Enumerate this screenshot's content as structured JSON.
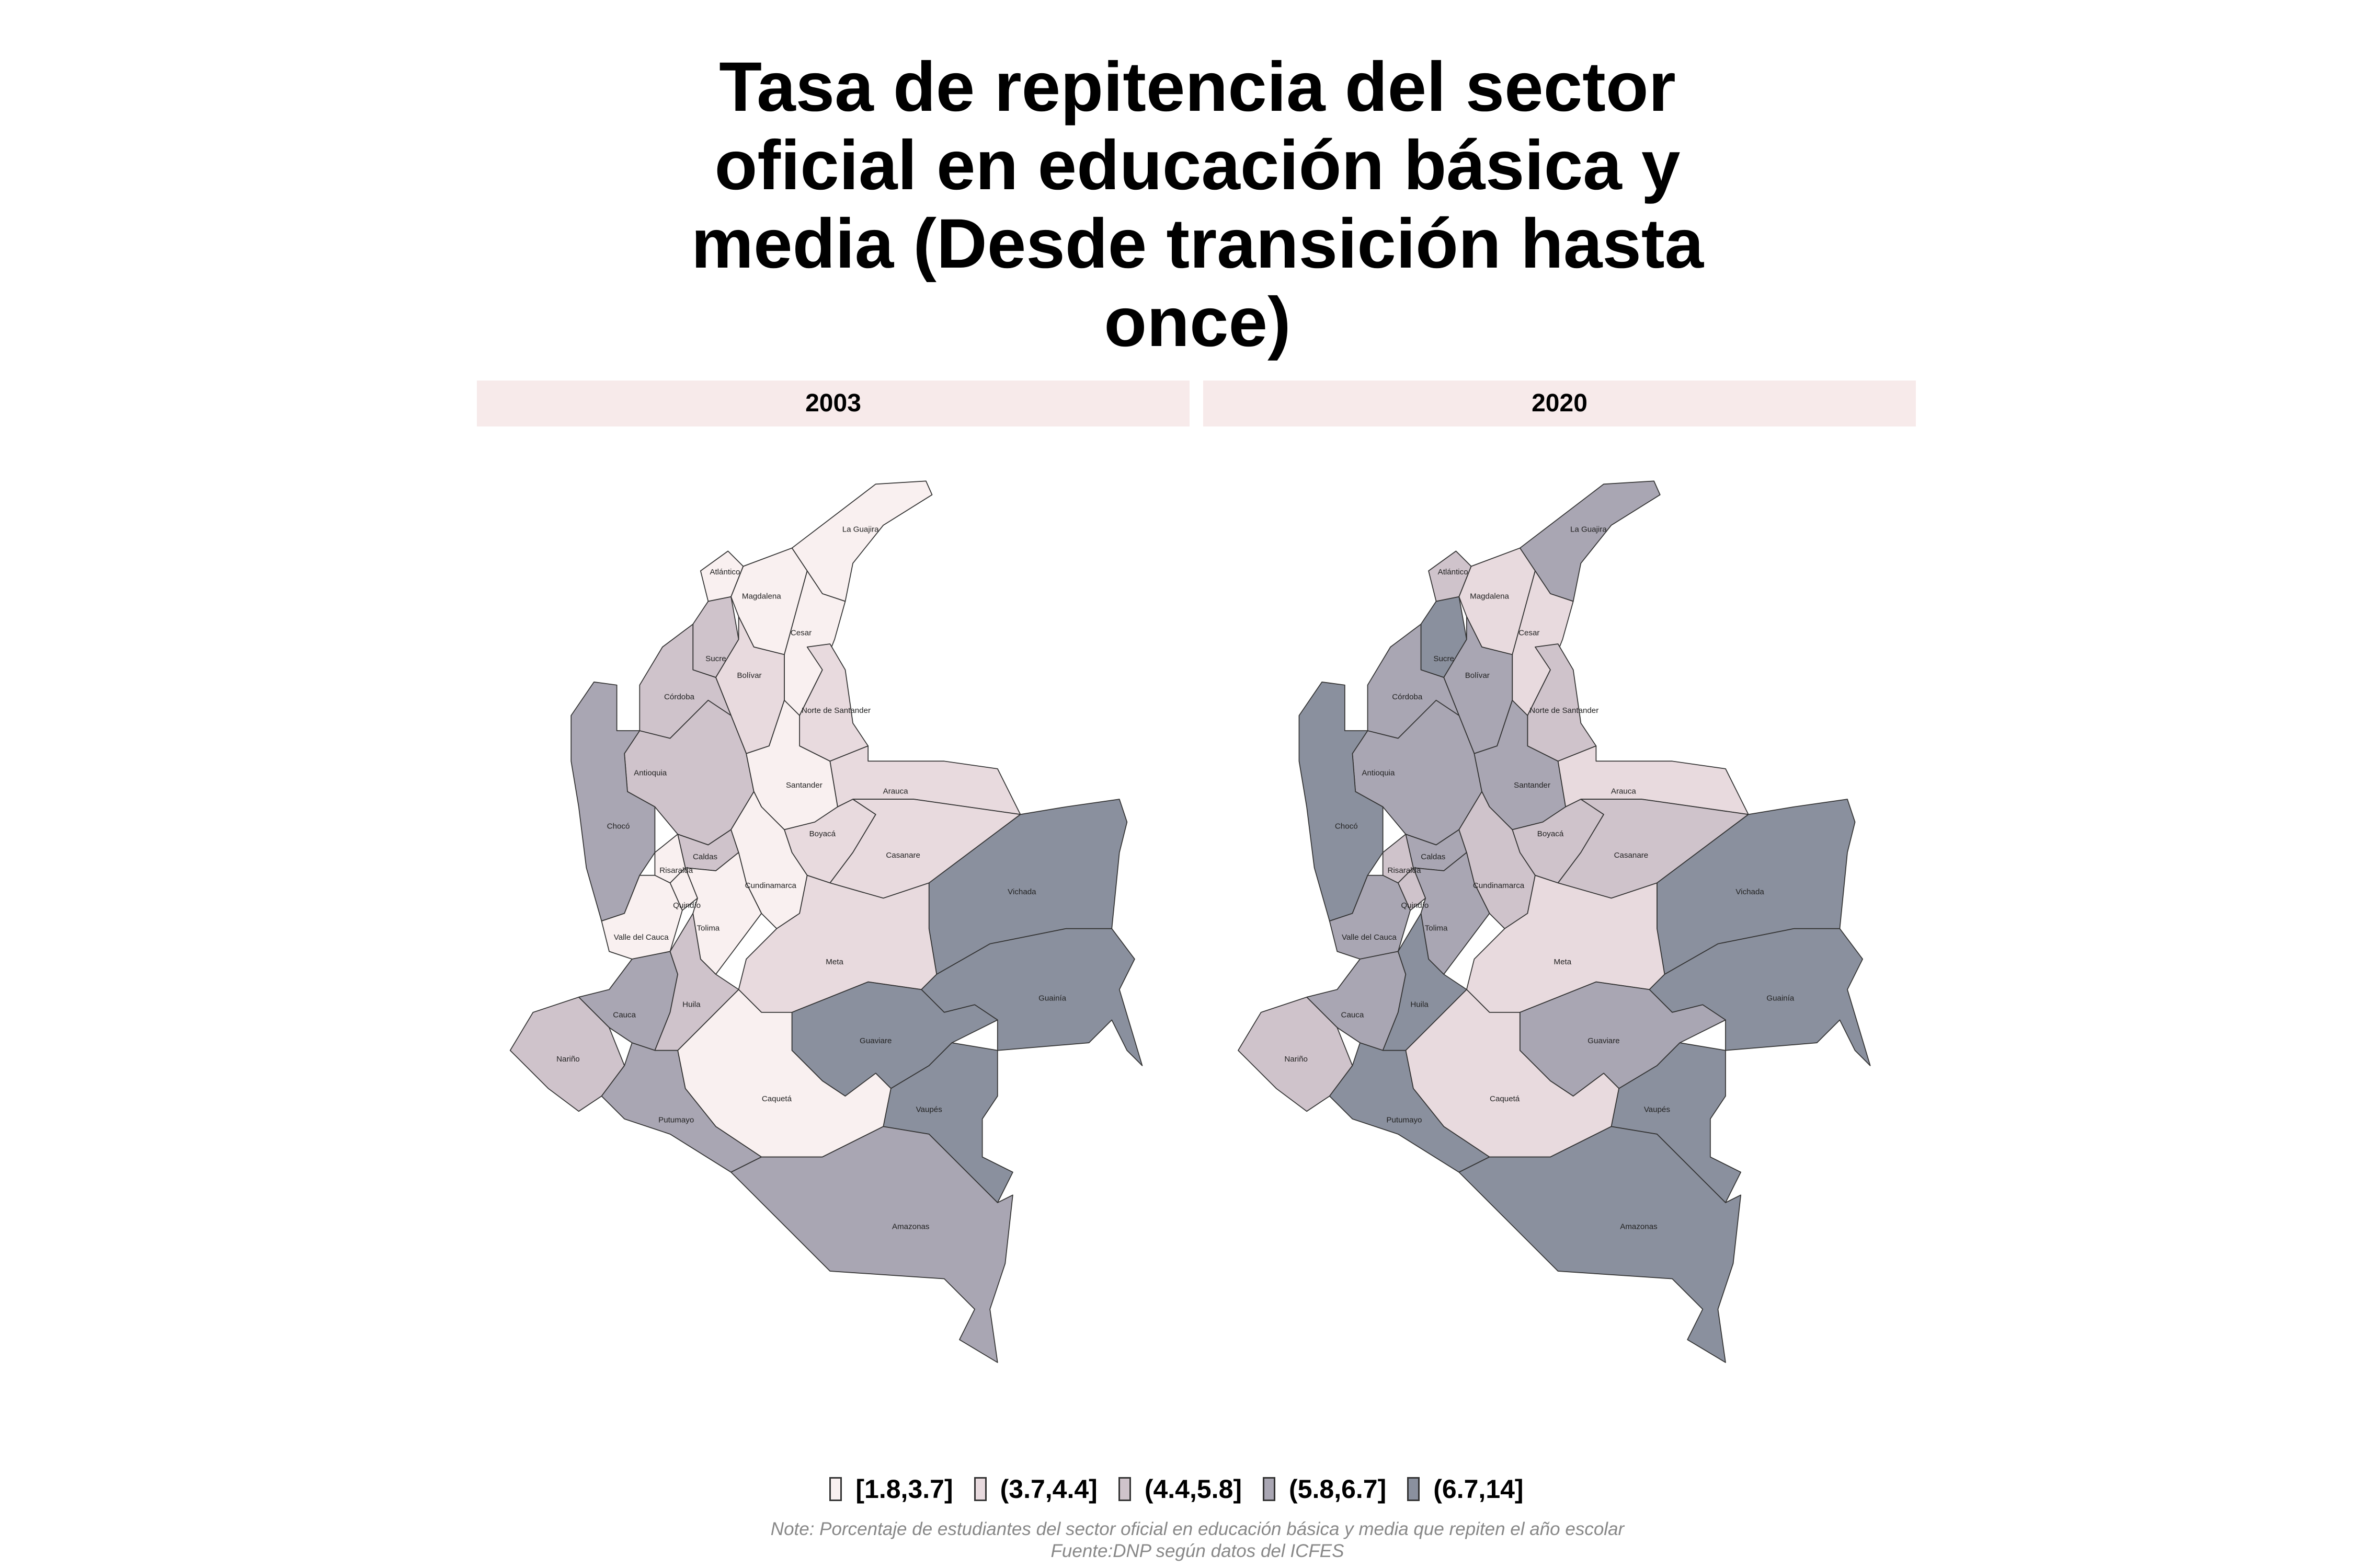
{
  "title": "Tasa de repitencia del sector oficial en educación básica y media (Desde transición hasta once)",
  "panels": [
    {
      "label": "2003",
      "regions": [
        {
          "name": "La Guajira",
          "color": "#f9f0f0"
        },
        {
          "name": "Atlántico",
          "color": "#f9f0f0"
        },
        {
          "name": "Magdalena",
          "color": "#f9f0f0"
        },
        {
          "name": "Cesar",
          "color": "#f9f0f0"
        },
        {
          "name": "Sucre",
          "color": "#cfc3cb"
        },
        {
          "name": "Bolívar",
          "color": "#e8dade"
        },
        {
          "name": "Córdoba",
          "color": "#cfc3cb"
        },
        {
          "name": "Norte de Santander",
          "color": "#e8dade"
        },
        {
          "name": "Antioquia",
          "color": "#cfc3cb"
        },
        {
          "name": "Santander",
          "color": "#f9f0f0"
        },
        {
          "name": "Arauca",
          "color": "#e8dade"
        },
        {
          "name": "Chocó",
          "color": "#a9a6b3"
        },
        {
          "name": "Boyacá",
          "color": "#e8dade"
        },
        {
          "name": "Casanare",
          "color": "#e8dade"
        },
        {
          "name": "Caldas",
          "color": "#cfc3cb"
        },
        {
          "name": "Risaralda",
          "color": "#f9f0f0"
        },
        {
          "name": "Cundinamarca",
          "color": "#f9f0f0"
        },
        {
          "name": "Vichada",
          "color": "#8a909e"
        },
        {
          "name": "Quindío",
          "color": "#f9f0f0"
        },
        {
          "name": "Tolima",
          "color": "#f9f0f0"
        },
        {
          "name": "Valle del Cauca",
          "color": "#f9f0f0"
        },
        {
          "name": "Meta",
          "color": "#e8dade"
        },
        {
          "name": "Guainía",
          "color": "#8a909e"
        },
        {
          "name": "Cauca",
          "color": "#a9a6b3"
        },
        {
          "name": "Huila",
          "color": "#cfc3cb"
        },
        {
          "name": "Guaviare",
          "color": "#8a909e"
        },
        {
          "name": "Nariño",
          "color": "#cfc3cb"
        },
        {
          "name": "Caquetá",
          "color": "#f9f0f0"
        },
        {
          "name": "Vaupés",
          "color": "#8a909e"
        },
        {
          "name": "Putumayo",
          "color": "#a9a6b3"
        },
        {
          "name": "Amazonas",
          "color": "#a9a6b3"
        }
      ]
    },
    {
      "label": "2020",
      "regions": [
        {
          "name": "La Guajira",
          "color": "#a9a6b3"
        },
        {
          "name": "Atlántico",
          "color": "#cfc3cb"
        },
        {
          "name": "Magdalena",
          "color": "#e8dade"
        },
        {
          "name": "Cesar",
          "color": "#e8dade"
        },
        {
          "name": "Sucre",
          "color": "#8a909e"
        },
        {
          "name": "Bolívar",
          "color": "#a9a6b3"
        },
        {
          "name": "Córdoba",
          "color": "#a9a6b3"
        },
        {
          "name": "Norte de Santander",
          "color": "#cfc3cb"
        },
        {
          "name": "Antioquia",
          "color": "#a9a6b3"
        },
        {
          "name": "Santander",
          "color": "#a9a6b3"
        },
        {
          "name": "Arauca",
          "color": "#e8dade"
        },
        {
          "name": "Chocó",
          "color": "#8a909e"
        },
        {
          "name": "Boyacá",
          "color": "#cfc3cb"
        },
        {
          "name": "Casanare",
          "color": "#cfc3cb"
        },
        {
          "name": "Caldas",
          "color": "#a9a6b3"
        },
        {
          "name": "Risaralda",
          "color": "#cfc3cb"
        },
        {
          "name": "Cundinamarca",
          "color": "#cfc3cb"
        },
        {
          "name": "Vichada",
          "color": "#8a909e"
        },
        {
          "name": "Quindío",
          "color": "#cfc3cb"
        },
        {
          "name": "Tolima",
          "color": "#a9a6b3"
        },
        {
          "name": "Valle del Cauca",
          "color": "#a9a6b3"
        },
        {
          "name": "Meta",
          "color": "#e8dade"
        },
        {
          "name": "Guainía",
          "color": "#8a909e"
        },
        {
          "name": "Cauca",
          "color": "#a9a6b3"
        },
        {
          "name": "Huila",
          "color": "#8a909e"
        },
        {
          "name": "Guaviare",
          "color": "#a9a6b3"
        },
        {
          "name": "Nariño",
          "color": "#cfc3cb"
        },
        {
          "name": "Caquetá",
          "color": "#e8dade"
        },
        {
          "name": "Vaupés",
          "color": "#8a909e"
        },
        {
          "name": "Putumayo",
          "color": "#8a909e"
        },
        {
          "name": "Amazonas",
          "color": "#8a909e"
        }
      ]
    }
  ],
  "legend": [
    {
      "label": "[1.8,3.7]",
      "color": "#f9f0f0"
    },
    {
      "label": "(3.7,4.4]",
      "color": "#e8dade"
    },
    {
      "label": "(4.4,5.8]",
      "color": "#cfc3cb"
    },
    {
      "label": "(5.8,6.7]",
      "color": "#a9a6b3"
    },
    {
      "label": "(6.7,14]",
      "color": "#8a909e"
    }
  ],
  "note": "Note: Porcentaje de estudiantes del sector oficial en educación básica y media que repiten el año escolar Fuente:DNP según datos del ICFES"
}
